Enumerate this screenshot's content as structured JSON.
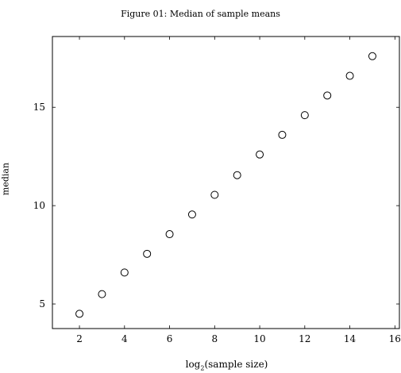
{
  "chart_data": {
    "type": "scatter",
    "title": "Figure 01: Median of sample means",
    "xlabel": {
      "prefix": "log",
      "sub": "2",
      "suffix": "(sample size)"
    },
    "ylabel": "median",
    "xlim": [
      0.8,
      16.2
    ],
    "ylim": [
      3.75,
      18.6
    ],
    "xticks": [
      2,
      4,
      6,
      8,
      10,
      12,
      14,
      16
    ],
    "yticks": [
      5,
      10,
      15
    ],
    "grid": false,
    "marker": "open-circle",
    "x": [
      2,
      3,
      4,
      5,
      6,
      7,
      8,
      9,
      10,
      11,
      12,
      13,
      14,
      15
    ],
    "y": [
      4.5,
      5.5,
      6.6,
      7.55,
      8.55,
      9.55,
      10.55,
      11.55,
      12.6,
      13.6,
      14.6,
      15.6,
      16.6,
      17.6
    ]
  }
}
